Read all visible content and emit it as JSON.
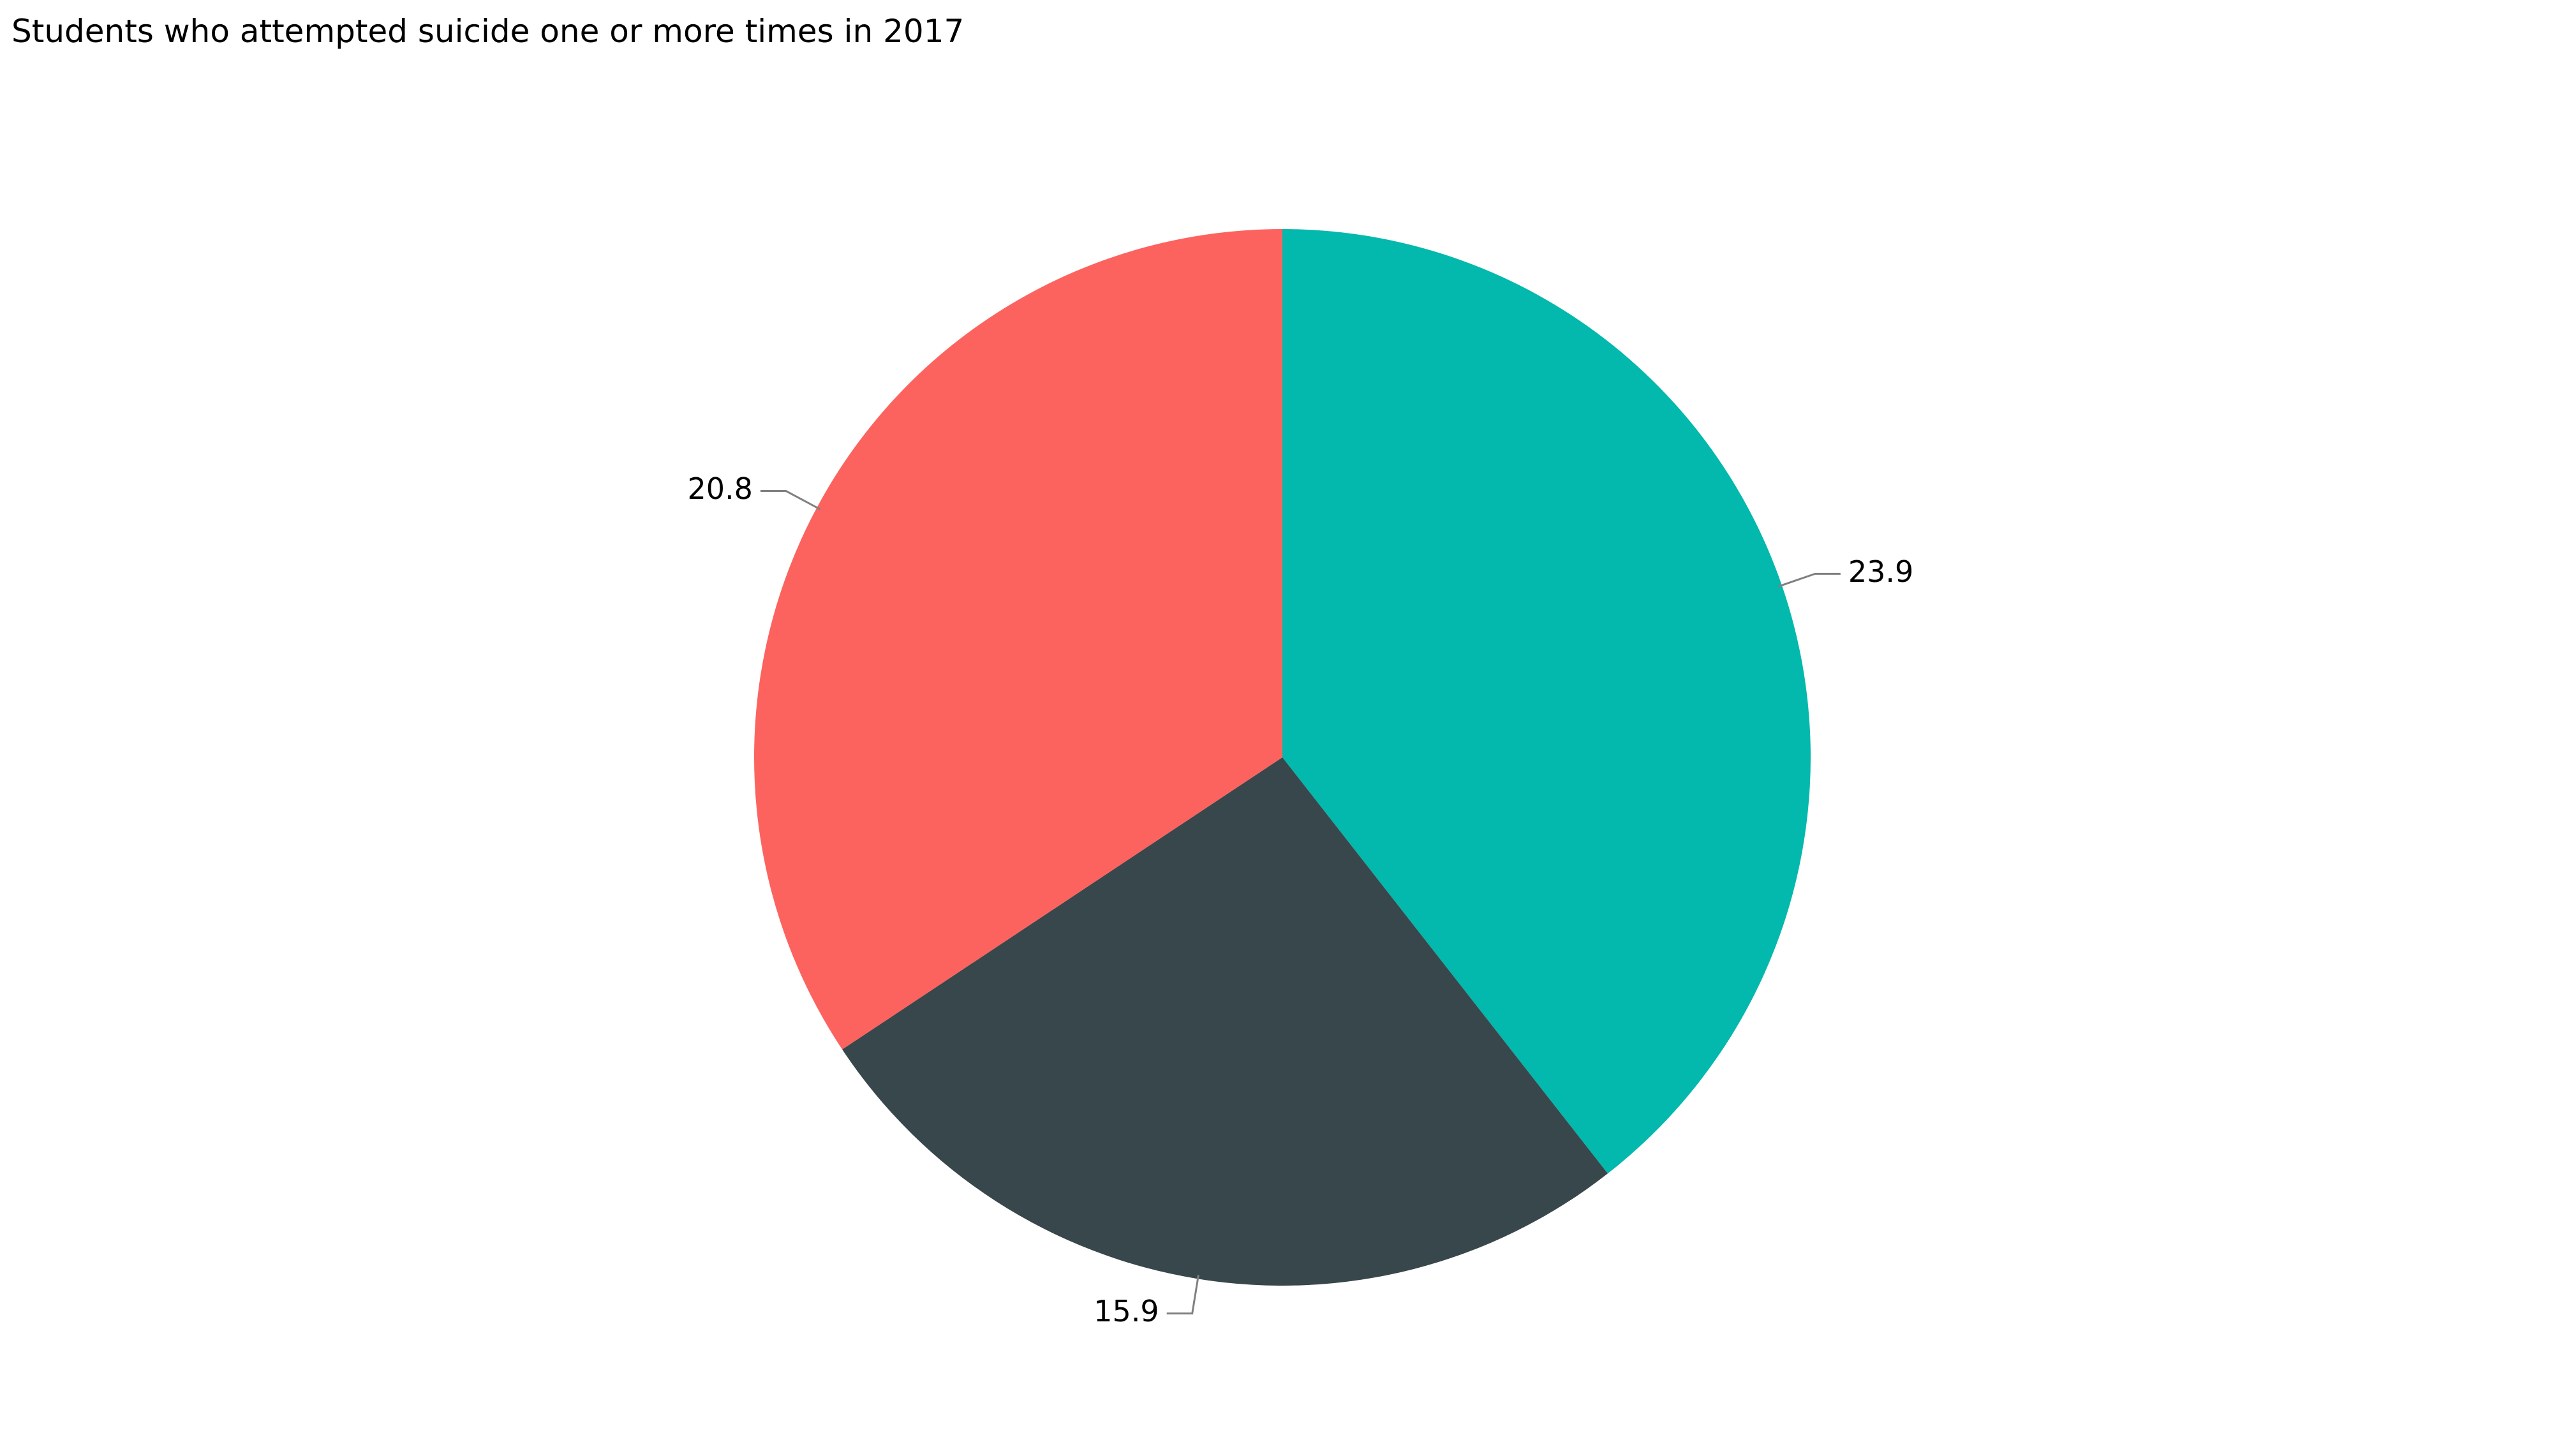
{
  "chart_data": {
    "type": "pie",
    "title": "Students who attempted suicide one or more times in 2017",
    "slices": [
      {
        "value": 23.9,
        "label": "23.9",
        "color": "#03b8ad"
      },
      {
        "value": 15.9,
        "label": "15.9",
        "color": "#38474b"
      },
      {
        "value": 20.8,
        "label": "20.8",
        "color": "#fc635f"
      }
    ],
    "start_angle": "top (12 o'clock)",
    "direction": "clockwise",
    "legend": "none"
  }
}
